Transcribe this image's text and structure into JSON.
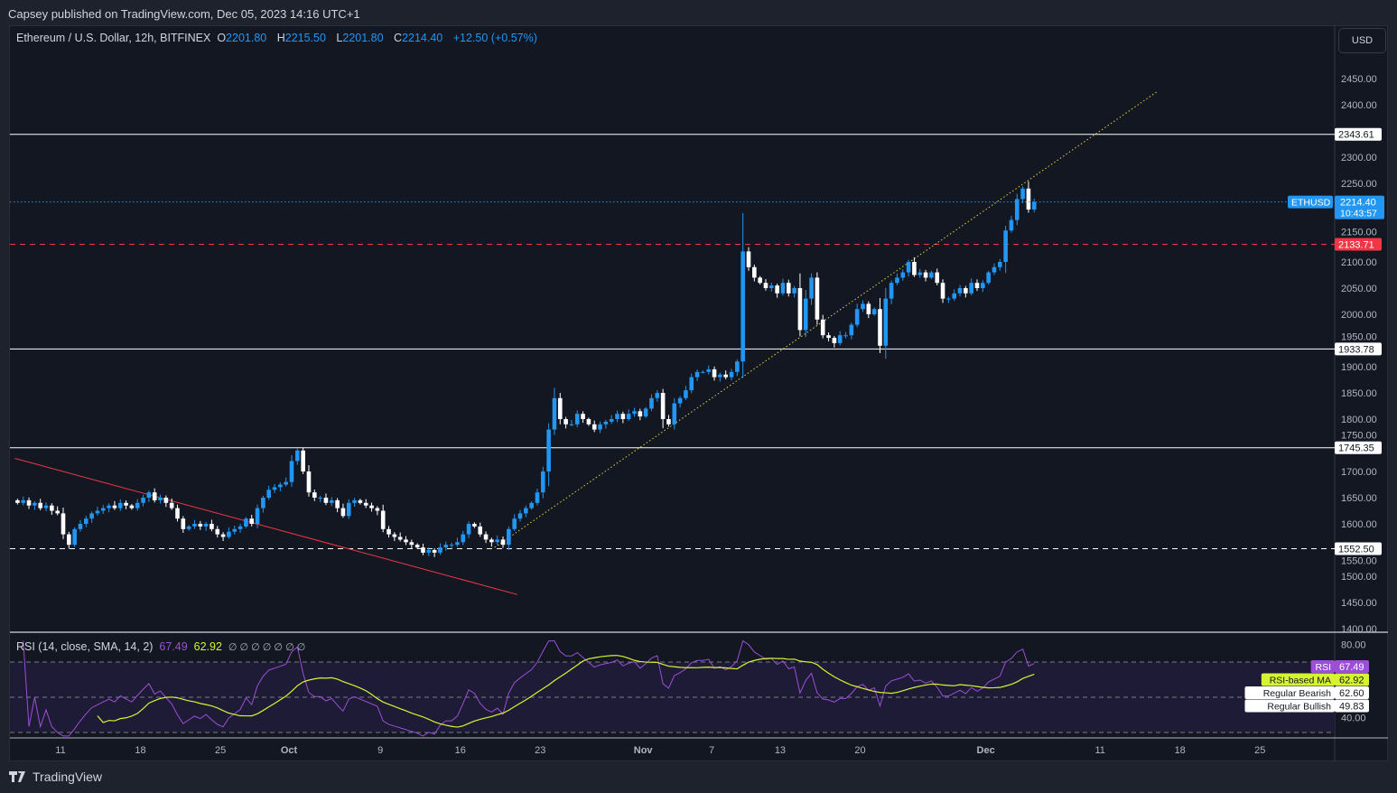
{
  "publish_line": "Capsey published on TradingView.com, Dec 05, 2023 14:16 UTC+1",
  "legend": {
    "symbol": "Ethereum / U.S. Dollar, 12h, BITFINEX",
    "o_label": "O",
    "o": "2201.80",
    "h_label": "H",
    "h": "2215.50",
    "l_label": "L",
    "l": "2201.80",
    "c_label": "C",
    "c": "2214.40",
    "change": "+12.50 (+0.57%)"
  },
  "currency_button": "USD",
  "rsi_legend": {
    "title": "RSI (14, close, SMA, 14, 2)",
    "rsi": "67.49",
    "ma": "62.92",
    "extra": "∅ ∅ ∅ ∅ ∅ ∅ ∅"
  },
  "brand": "TradingView",
  "colors": {
    "up": "#2196f3",
    "down": "#ffffff",
    "rsi": "#9c4fd6",
    "rsi_ma": "#d7f431",
    "red_line": "#f23645",
    "trend": "#e3d33c"
  },
  "chart_data": {
    "type": "candlestick",
    "interval": "12h",
    "x_start": "2023-09-07",
    "closes": [
      1640,
      1645,
      1635,
      1640,
      1630,
      1635,
      1625,
      1620,
      1580,
      1560,
      1590,
      1600,
      1610,
      1620,
      1625,
      1630,
      1635,
      1630,
      1640,
      1635,
      1630,
      1640,
      1650,
      1660,
      1645,
      1650,
      1640,
      1630,
      1610,
      1590,
      1595,
      1600,
      1595,
      1600,
      1590,
      1580,
      1575,
      1585,
      1590,
      1595,
      1610,
      1600,
      1630,
      1650,
      1665,
      1670,
      1675,
      1680,
      1720,
      1740,
      1700,
      1660,
      1650,
      1650,
      1640,
      1645,
      1630,
      1615,
      1640,
      1645,
      1640,
      1635,
      1630,
      1625,
      1590,
      1580,
      1575,
      1570,
      1565,
      1560,
      1555,
      1545,
      1550,
      1545,
      1555,
      1560,
      1560,
      1565,
      1580,
      1600,
      1595,
      1580,
      1570,
      1565,
      1570,
      1560,
      1590,
      1610,
      1620,
      1630,
      1640,
      1660,
      1700,
      1780,
      1840,
      1800,
      1790,
      1790,
      1810,
      1800,
      1790,
      1780,
      1790,
      1795,
      1800,
      1810,
      1800,
      1810,
      1815,
      1805,
      1820,
      1840,
      1850,
      1800,
      1790,
      1830,
      1840,
      1855,
      1880,
      1890,
      1890,
      1895,
      1880,
      1885,
      1880,
      1890,
      1910,
      2120,
      2090,
      2070,
      2060,
      2050,
      2055,
      2040,
      2060,
      2040,
      2050,
      1970,
      2030,
      2070,
      1990,
      1960,
      1955,
      1945,
      1960,
      1960,
      1980,
      2010,
      2020,
      2000,
      2010,
      1940,
      2030,
      2060,
      2070,
      2080,
      2100,
      2075,
      2080,
      2070,
      2080,
      2060,
      2030,
      2030,
      2040,
      2050,
      2040,
      2060,
      2050,
      2060,
      2080,
      2090,
      2100,
      2160,
      2180,
      2220,
      2240,
      2200,
      2214.4
    ],
    "y_ticks": [
      2450,
      2400,
      2300,
      2250,
      2150,
      2100,
      2050,
      2000,
      1950,
      1900,
      1850,
      1800,
      1750,
      1700,
      1650,
      1600,
      1550,
      1500,
      1450,
      1400
    ],
    "x_ticks": [
      {
        "d": "2023-09-11",
        "label": "11"
      },
      {
        "d": "2023-09-18",
        "label": "18"
      },
      {
        "d": "2023-09-25",
        "label": "25"
      },
      {
        "d": "2023-10-01",
        "label": "Oct"
      },
      {
        "d": "2023-10-09",
        "label": "9"
      },
      {
        "d": "2023-10-16",
        "label": "16"
      },
      {
        "d": "2023-10-23",
        "label": "23"
      },
      {
        "d": "2023-11-01",
        "label": "Nov"
      },
      {
        "d": "2023-11-07",
        "label": "7"
      },
      {
        "d": "2023-11-13",
        "label": "13"
      },
      {
        "d": "2023-11-20",
        "label": "20"
      },
      {
        "d": "2023-12-01",
        "label": "Dec"
      },
      {
        "d": "2023-12-11",
        "label": "11"
      },
      {
        "d": "2023-12-18",
        "label": "18"
      },
      {
        "d": "2023-12-25",
        "label": "25"
      }
    ],
    "levels": [
      {
        "price": 2343.61,
        "label": "2343.61",
        "style": "solid"
      },
      {
        "price": 2133.71,
        "label": "2133.71",
        "style": "dashed-red"
      },
      {
        "price": 1933.78,
        "label": "1933.78",
        "style": "solid"
      },
      {
        "price": 1745.35,
        "label": "1745.35",
        "style": "solid"
      },
      {
        "price": 1552.5,
        "label": "1552.50",
        "style": "dashed"
      }
    ],
    "last_price": {
      "price": 2214.4,
      "symbol": "ETHUSD",
      "label": "2214.40",
      "countdown": "10:43:57"
    },
    "trendlines": [
      {
        "from": [
          "2023-09-07",
          1725
        ],
        "to": [
          "2023-10-21",
          1465
        ],
        "color": "red"
      },
      {
        "from": [
          "2023-10-19",
          1555
        ],
        "to": [
          "2023-12-16",
          2425
        ],
        "color": "yellow-dotted"
      }
    ],
    "rsi": {
      "ylim": [
        30,
        80
      ],
      "y_ticks": [
        {
          "v": 80,
          "label": "80.00"
        },
        {
          "v": 40,
          "label": "40.00"
        }
      ],
      "bands": [
        70,
        50,
        30
      ],
      "labels": [
        {
          "name": "RSI",
          "value": "67.49"
        },
        {
          "name": "RSI-based MA",
          "value": "62.92"
        },
        {
          "name": "Regular Bearish",
          "value": "62.60"
        },
        {
          "name": "Regular Bullish",
          "value": "49.83"
        }
      ]
    }
  }
}
